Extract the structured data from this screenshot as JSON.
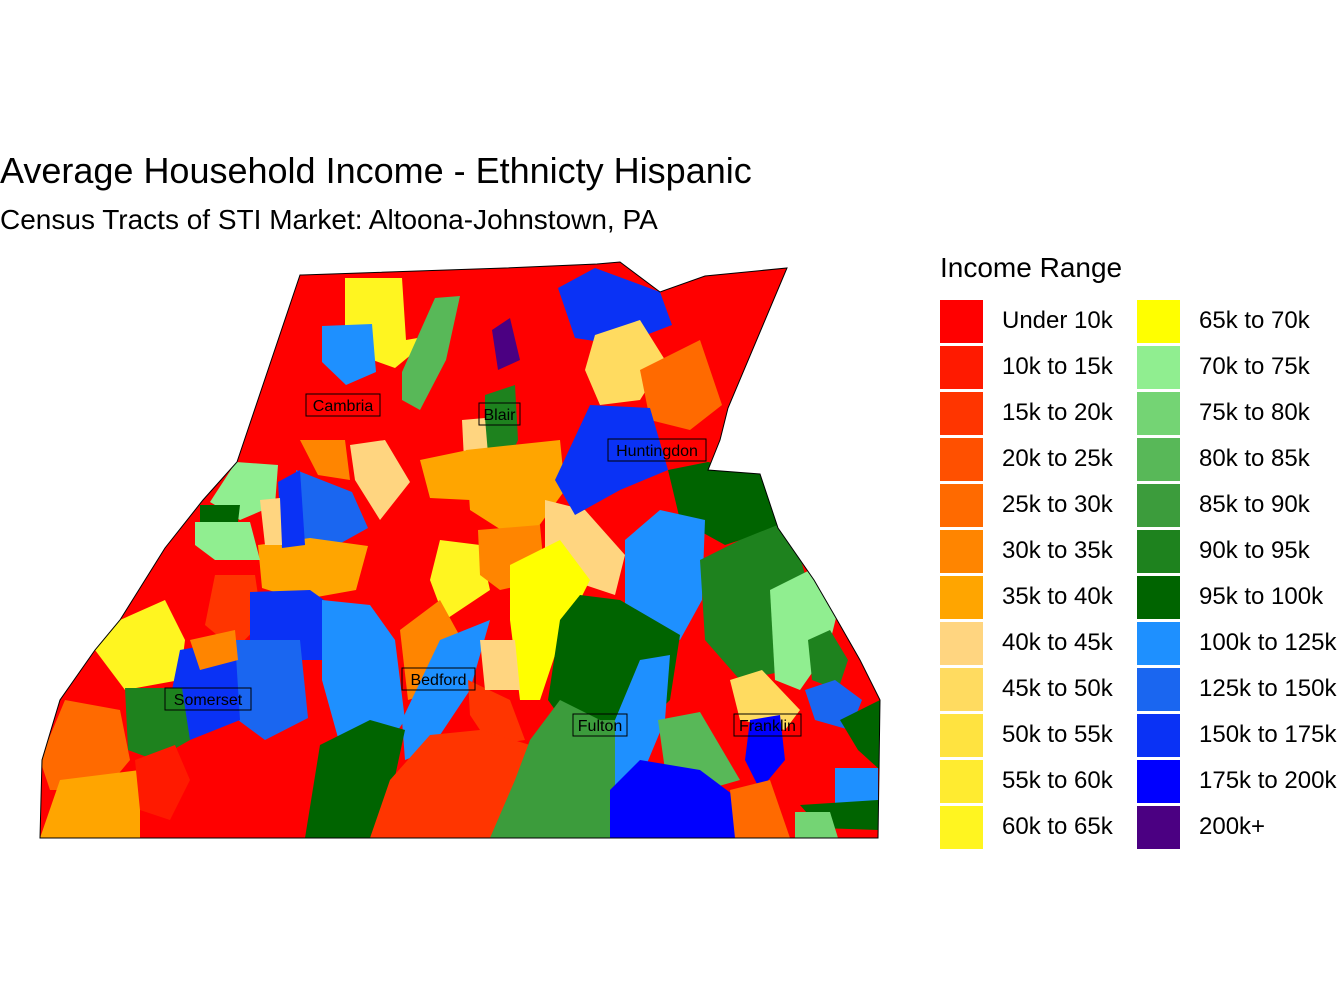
{
  "title": "Average Household Income - Ethnicty Hispanic",
  "subtitle": "Census Tracts of STI Market: Altoona-Johnstown, PA",
  "legend": {
    "title": "Income Range",
    "columns": [
      [
        {
          "label": "Under 10k",
          "color": "#FF0000"
        },
        {
          "label": "10k to 15k",
          "color": "#FF1A00"
        },
        {
          "label": "15k to 20k",
          "color": "#FF3500"
        },
        {
          "label": "20k to 25k",
          "color": "#FF5000"
        },
        {
          "label": "25k to 30k",
          "color": "#FF6A00"
        },
        {
          "label": "30k to 35k",
          "color": "#FF8500"
        },
        {
          "label": "35k to 40k",
          "color": "#FFA500"
        },
        {
          "label": "40k to 45k",
          "color": "#FFD580"
        },
        {
          "label": "45k to 50k",
          "color": "#FFDB60"
        },
        {
          "label": "50k to 55k",
          "color": "#FFE340"
        },
        {
          "label": "55k to 60k",
          "color": "#FFEB30"
        },
        {
          "label": "60k to 65k",
          "color": "#FFF520"
        }
      ],
      [
        {
          "label": "65k to 70k",
          "color": "#FFFF00"
        },
        {
          "label": "70k to 75k",
          "color": "#90EE90"
        },
        {
          "label": "75k to 80k",
          "color": "#74D474"
        },
        {
          "label": "80k to 85k",
          "color": "#58B858"
        },
        {
          "label": "85k to 90k",
          "color": "#3C9C3C"
        },
        {
          "label": "90k to 95k",
          "color": "#1E821E"
        },
        {
          "label": "95k to 100k",
          "color": "#006400"
        },
        {
          "label": "100k to 125k",
          "color": "#1E90FF"
        },
        {
          "label": "125k to 150k",
          "color": "#1A66F0"
        },
        {
          "label": "150k to 175k",
          "color": "#0A32F5"
        },
        {
          "label": "175k to 200k",
          "color": "#0000FF"
        },
        {
          "label": "200k+",
          "color": "#4B0082"
        }
      ]
    ]
  },
  "counties": [
    {
      "name": "Cambria"
    },
    {
      "name": "Blair"
    },
    {
      "name": "Huntingdon"
    },
    {
      "name": "Somerset"
    },
    {
      "name": "Bedford"
    },
    {
      "name": "Fulton"
    },
    {
      "name": "Franklin"
    }
  ]
}
